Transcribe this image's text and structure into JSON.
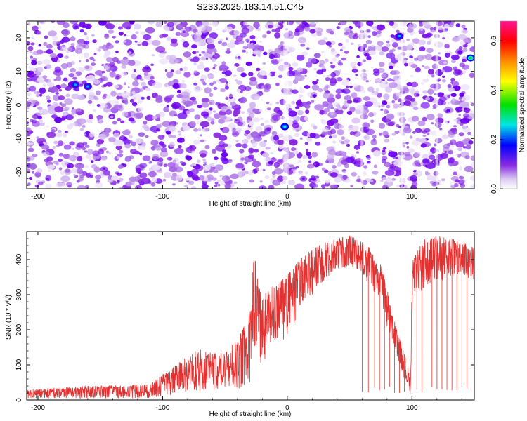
{
  "title": "S233.2025.183.14.51.C45",
  "chart_data": [
    {
      "type": "heatmap",
      "xlabel": "Height of straight line (km)",
      "ylabel": "Frequency (Hz)",
      "xlim": [
        -209,
        150
      ],
      "ylim": [
        -25,
        25
      ],
      "x_ticks": [
        -200,
        -100,
        0,
        100
      ],
      "y_ticks": [
        -20,
        -10,
        0,
        10,
        20
      ],
      "colorbar": {
        "label": "Normalized spectral amplitude",
        "range": [
          0,
          0.68
        ],
        "ticks": [
          0,
          0.2,
          0.4,
          0.6
        ],
        "colors": [
          "#ffffff",
          "#8a2be2",
          "#0000ff",
          "#00e5e5",
          "#00e000",
          "#ffff00",
          "#ff8c00",
          "#ff0000",
          "#ff1493"
        ]
      },
      "hotspots": [
        {
          "x": -170,
          "y": 6,
          "value": 0.18
        },
        {
          "x": -160,
          "y": 5.5,
          "value": 0.15
        },
        {
          "x": -2,
          "y": -6.5,
          "value": 0.25
        },
        {
          "x": 90,
          "y": 20.5,
          "value": 0.12
        },
        {
          "x": 147,
          "y": 14,
          "value": 0.38
        }
      ]
    },
    {
      "type": "line",
      "xlabel": "Height of straight line (km)",
      "ylabel": "SNR (10 * v/v)",
      "xlim": [
        -209,
        150
      ],
      "ylim": [
        0,
        480
      ],
      "x_ticks": [
        -200,
        -100,
        0,
        100
      ],
      "y_ticks": [
        0,
        100,
        200,
        300,
        400
      ],
      "line_color": "#e53030",
      "envelope": [
        {
          "x": -209,
          "min": 5,
          "max": 30
        },
        {
          "x": -160,
          "min": 5,
          "max": 40
        },
        {
          "x": -110,
          "min": 5,
          "max": 45
        },
        {
          "x": -90,
          "min": 15,
          "max": 100
        },
        {
          "x": -70,
          "min": 25,
          "max": 150
        },
        {
          "x": -55,
          "min": 30,
          "max": 130
        },
        {
          "x": -40,
          "min": 30,
          "max": 170
        },
        {
          "x": -30,
          "min": 50,
          "max": 250
        },
        {
          "x": -27,
          "min": 120,
          "max": 420
        },
        {
          "x": -20,
          "min": 100,
          "max": 300
        },
        {
          "x": -10,
          "min": 150,
          "max": 330
        },
        {
          "x": 0,
          "min": 180,
          "max": 360
        },
        {
          "x": 10,
          "min": 250,
          "max": 400
        },
        {
          "x": 20,
          "min": 300,
          "max": 430
        },
        {
          "x": 30,
          "min": 340,
          "max": 450
        },
        {
          "x": 40,
          "min": 370,
          "max": 465
        },
        {
          "x": 50,
          "min": 380,
          "max": 470
        },
        {
          "x": 57,
          "min": 370,
          "max": 460
        },
        {
          "x": 65,
          "min": 330,
          "max": 440
        },
        {
          "x": 75,
          "min": 280,
          "max": 390
        },
        {
          "x": 80,
          "min": 200,
          "max": 320
        },
        {
          "x": 85,
          "min": 160,
          "max": 240
        },
        {
          "x": 90,
          "min": 100,
          "max": 180
        },
        {
          "x": 95,
          "min": 50,
          "max": 120
        },
        {
          "x": 99,
          "min": 10,
          "max": 60
        },
        {
          "x": 100,
          "min": 270,
          "max": 400
        },
        {
          "x": 110,
          "min": 320,
          "max": 460
        },
        {
          "x": 125,
          "min": 340,
          "max": 470
        },
        {
          "x": 140,
          "min": 350,
          "max": 450
        },
        {
          "x": 150,
          "min": 340,
          "max": 440
        }
      ],
      "dropouts": [
        60,
        65,
        70,
        74,
        78,
        82,
        86,
        90,
        94,
        104,
        108,
        112,
        116,
        120,
        124,
        128,
        132,
        136,
        140,
        144
      ]
    }
  ]
}
